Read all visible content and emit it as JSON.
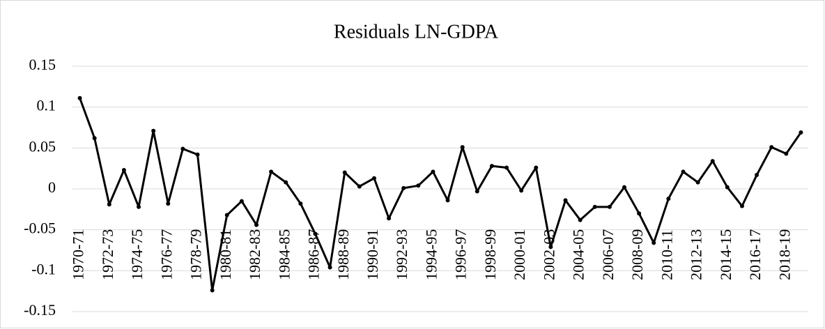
{
  "chart_data": {
    "type": "line",
    "title": "Residuals LN-GDPA",
    "categories": [
      "1970-71",
      null,
      "1972-73",
      null,
      "1974-75",
      null,
      "1976-77",
      null,
      "1978-79",
      null,
      "1980-81",
      null,
      "1982-83",
      null,
      "1984-85",
      null,
      "1986-87",
      null,
      "1988-89",
      null,
      "1990-91",
      null,
      "1992-93",
      null,
      "1994-95",
      null,
      "1996-97",
      null,
      "1998-99",
      null,
      "2000-01",
      null,
      "2002-03",
      null,
      "2004-05",
      null,
      "2006-07",
      null,
      "2008-09",
      null,
      "2010-11",
      null,
      "2012-13",
      null,
      "2014-15",
      null,
      "2016-17",
      null,
      "2018-19",
      null
    ],
    "series": [
      {
        "name": "Residuals",
        "color": "#000000",
        "values": [
          0.111,
          0.062,
          -0.019,
          0.023,
          -0.022,
          0.071,
          -0.018,
          0.049,
          0.042,
          -0.124,
          -0.032,
          -0.015,
          -0.044,
          0.021,
          0.008,
          -0.018,
          -0.055,
          -0.096,
          0.02,
          0.003,
          0.013,
          -0.036,
          0.001,
          0.004,
          0.021,
          -0.014,
          0.051,
          -0.003,
          0.028,
          0.026,
          -0.002,
          0.026,
          -0.071,
          -0.014,
          -0.038,
          -0.022,
          -0.022,
          0.002,
          -0.03,
          -0.066,
          -0.012,
          0.021,
          0.008,
          0.034,
          0.002,
          -0.021,
          0.017,
          0.051,
          0.043,
          0.069
        ]
      }
    ],
    "ylim": [
      -0.15,
      0.15
    ],
    "yticks": [
      -0.15,
      -0.1,
      -0.05,
      0,
      0.05,
      0.1,
      0.15
    ],
    "grid": true
  }
}
